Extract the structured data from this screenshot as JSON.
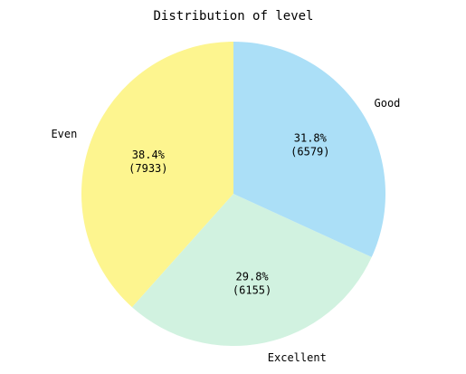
{
  "chart_data": {
    "type": "pie",
    "title": "Distribution of level",
    "categories": [
      "Even",
      "Excellent",
      "Good"
    ],
    "values": [
      7933,
      6155,
      6579
    ],
    "percentages": [
      "38.4%",
      "29.8%",
      "31.8%"
    ],
    "counts": [
      "(7933)",
      "(6155)",
      "(6579)"
    ],
    "colors": [
      "#fdf58f",
      "#d1f2e0",
      "#abdff7"
    ],
    "start_angle_deg": 90,
    "direction": "counterclockwise",
    "legend": "none"
  }
}
